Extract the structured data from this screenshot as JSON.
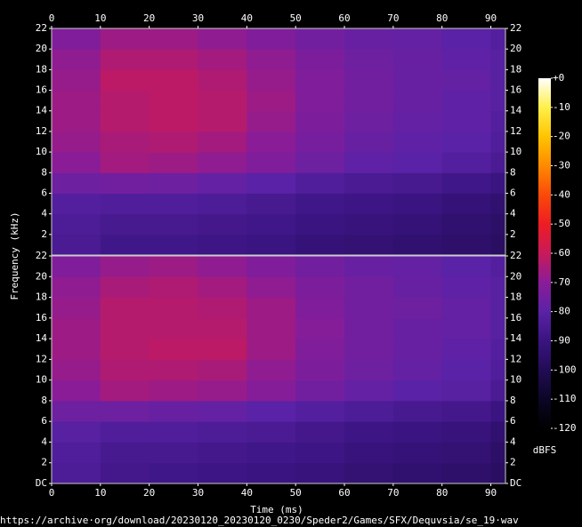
{
  "chart_data": {
    "type": "heatmap",
    "xlabel": "Time (ms)",
    "ylabel": "Frequency (kHz)",
    "xlim": [
      0,
      93
    ],
    "xticks": [
      0,
      10,
      20,
      30,
      40,
      50,
      60,
      70,
      80,
      90
    ],
    "xbins": [
      0,
      10,
      20,
      30,
      40,
      50,
      60,
      70,
      80,
      90,
      93
    ],
    "ybins": [
      0,
      2,
      4,
      6,
      8,
      10,
      12,
      14,
      16,
      18,
      20,
      22
    ],
    "colormap": [
      "#000000",
      "#0c0626",
      "#220c55",
      "#3a1480",
      "#5a22a6",
      "#8a1c98",
      "#c81a5a",
      "#ee1c24",
      "#fa4a08",
      "#ff8a00",
      "#ffc400",
      "#fff04a",
      "#ffffff"
    ],
    "colorbar": {
      "label": "dBFS",
      "lim": [
        -120,
        0
      ],
      "ticks": [
        {
          "value": 0,
          "label": "+0"
        },
        -10,
        -20,
        -30,
        -40,
        -50,
        -60,
        -70,
        -80,
        -90,
        -100,
        -110,
        -120
      ]
    },
    "channels": [
      {
        "ylim": [
          0,
          22
        ],
        "yticks": [
          2,
          4,
          6,
          8,
          10,
          12,
          14,
          16,
          18,
          20,
          22
        ],
        "values": [
          [
            -85,
            -88,
            -88,
            -89,
            -90,
            -92,
            -93,
            -94,
            -95,
            -97
          ],
          [
            -84,
            -86,
            -86,
            -87,
            -88,
            -90,
            -91,
            -92,
            -94,
            -96
          ],
          [
            -82,
            -83,
            -83,
            -84,
            -86,
            -88,
            -89,
            -90,
            -92,
            -94
          ],
          [
            -76,
            -75,
            -76,
            -78,
            -80,
            -83,
            -85,
            -86,
            -88,
            -90
          ],
          [
            -70,
            -66,
            -67,
            -69,
            -72,
            -76,
            -79,
            -80,
            -82,
            -85
          ],
          [
            -68,
            -65,
            -64,
            -66,
            -70,
            -74,
            -77,
            -79,
            -80,
            -83
          ],
          [
            -67,
            -63,
            -62,
            -63,
            -68,
            -73,
            -76,
            -78,
            -79,
            -82
          ],
          [
            -67,
            -63,
            -62,
            -63,
            -67,
            -72,
            -75,
            -77,
            -79,
            -81
          ],
          [
            -68,
            -62,
            -62,
            -64,
            -68,
            -72,
            -75,
            -77,
            -78,
            -81
          ],
          [
            -69,
            -64,
            -64,
            -66,
            -69,
            -73,
            -76,
            -77,
            -79,
            -81
          ],
          [
            -72,
            -67,
            -67,
            -69,
            -72,
            -75,
            -77,
            -78,
            -80,
            -82
          ]
        ]
      },
      {
        "ylim": [
          0,
          22
        ],
        "yticks": [
          {
            "value": 0,
            "label": "DC"
          },
          2,
          4,
          6,
          8,
          10,
          12,
          14,
          16,
          18,
          20,
          22
        ],
        "values": [
          [
            -84,
            -87,
            -88,
            -89,
            -90,
            -91,
            -93,
            -94,
            -95,
            -97
          ],
          [
            -83,
            -86,
            -86,
            -87,
            -88,
            -89,
            -91,
            -92,
            -93,
            -96
          ],
          [
            -81,
            -83,
            -83,
            -84,
            -85,
            -87,
            -89,
            -90,
            -91,
            -94
          ],
          [
            -76,
            -76,
            -77,
            -78,
            -80,
            -82,
            -84,
            -86,
            -87,
            -90
          ],
          [
            -70,
            -66,
            -67,
            -68,
            -71,
            -75,
            -78,
            -80,
            -81,
            -85
          ],
          [
            -68,
            -64,
            -64,
            -65,
            -69,
            -73,
            -76,
            -78,
            -80,
            -83
          ],
          [
            -67,
            -63,
            -62,
            -62,
            -67,
            -72,
            -75,
            -77,
            -79,
            -82
          ],
          [
            -67,
            -63,
            -63,
            -63,
            -67,
            -71,
            -75,
            -77,
            -78,
            -81
          ],
          [
            -68,
            -63,
            -63,
            -64,
            -67,
            -72,
            -75,
            -76,
            -78,
            -81
          ],
          [
            -69,
            -65,
            -64,
            -66,
            -69,
            -73,
            -75,
            -77,
            -79,
            -81
          ],
          [
            -72,
            -68,
            -67,
            -69,
            -72,
            -75,
            -77,
            -78,
            -80,
            -82
          ]
        ]
      }
    ],
    "footer": "https://archive·org/download/20230120_20230120_0230/Speder2/Games/SFX/Dequvsia/se_19·wav"
  }
}
